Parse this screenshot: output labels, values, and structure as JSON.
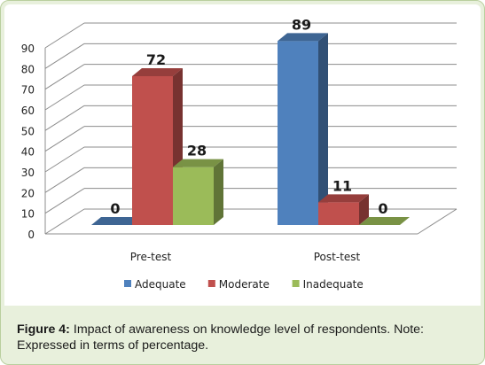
{
  "chart_data": {
    "type": "bar",
    "categories": [
      "Pre-test",
      "Post-test"
    ],
    "series": [
      {
        "name": "Adequate",
        "values": [
          0,
          89
        ],
        "color": "#4f81bd"
      },
      {
        "name": "Moderate",
        "values": [
          72,
          11
        ],
        "color": "#c0504d"
      },
      {
        "name": "Inadequate",
        "values": [
          28,
          0
        ],
        "color": "#9bbb59"
      }
    ],
    "ylim": [
      0,
      90
    ],
    "yticks": [
      "0",
      "10",
      "20",
      "30",
      "40",
      "50",
      "60",
      "70",
      "80",
      "90"
    ],
    "grid": true,
    "legend": "bottom",
    "style": "3d-bar"
  },
  "caption": {
    "label": "Figure 4:",
    "text": "Impact of awareness on knowledge level of respondents. Note: Expressed in terms of percentage."
  }
}
